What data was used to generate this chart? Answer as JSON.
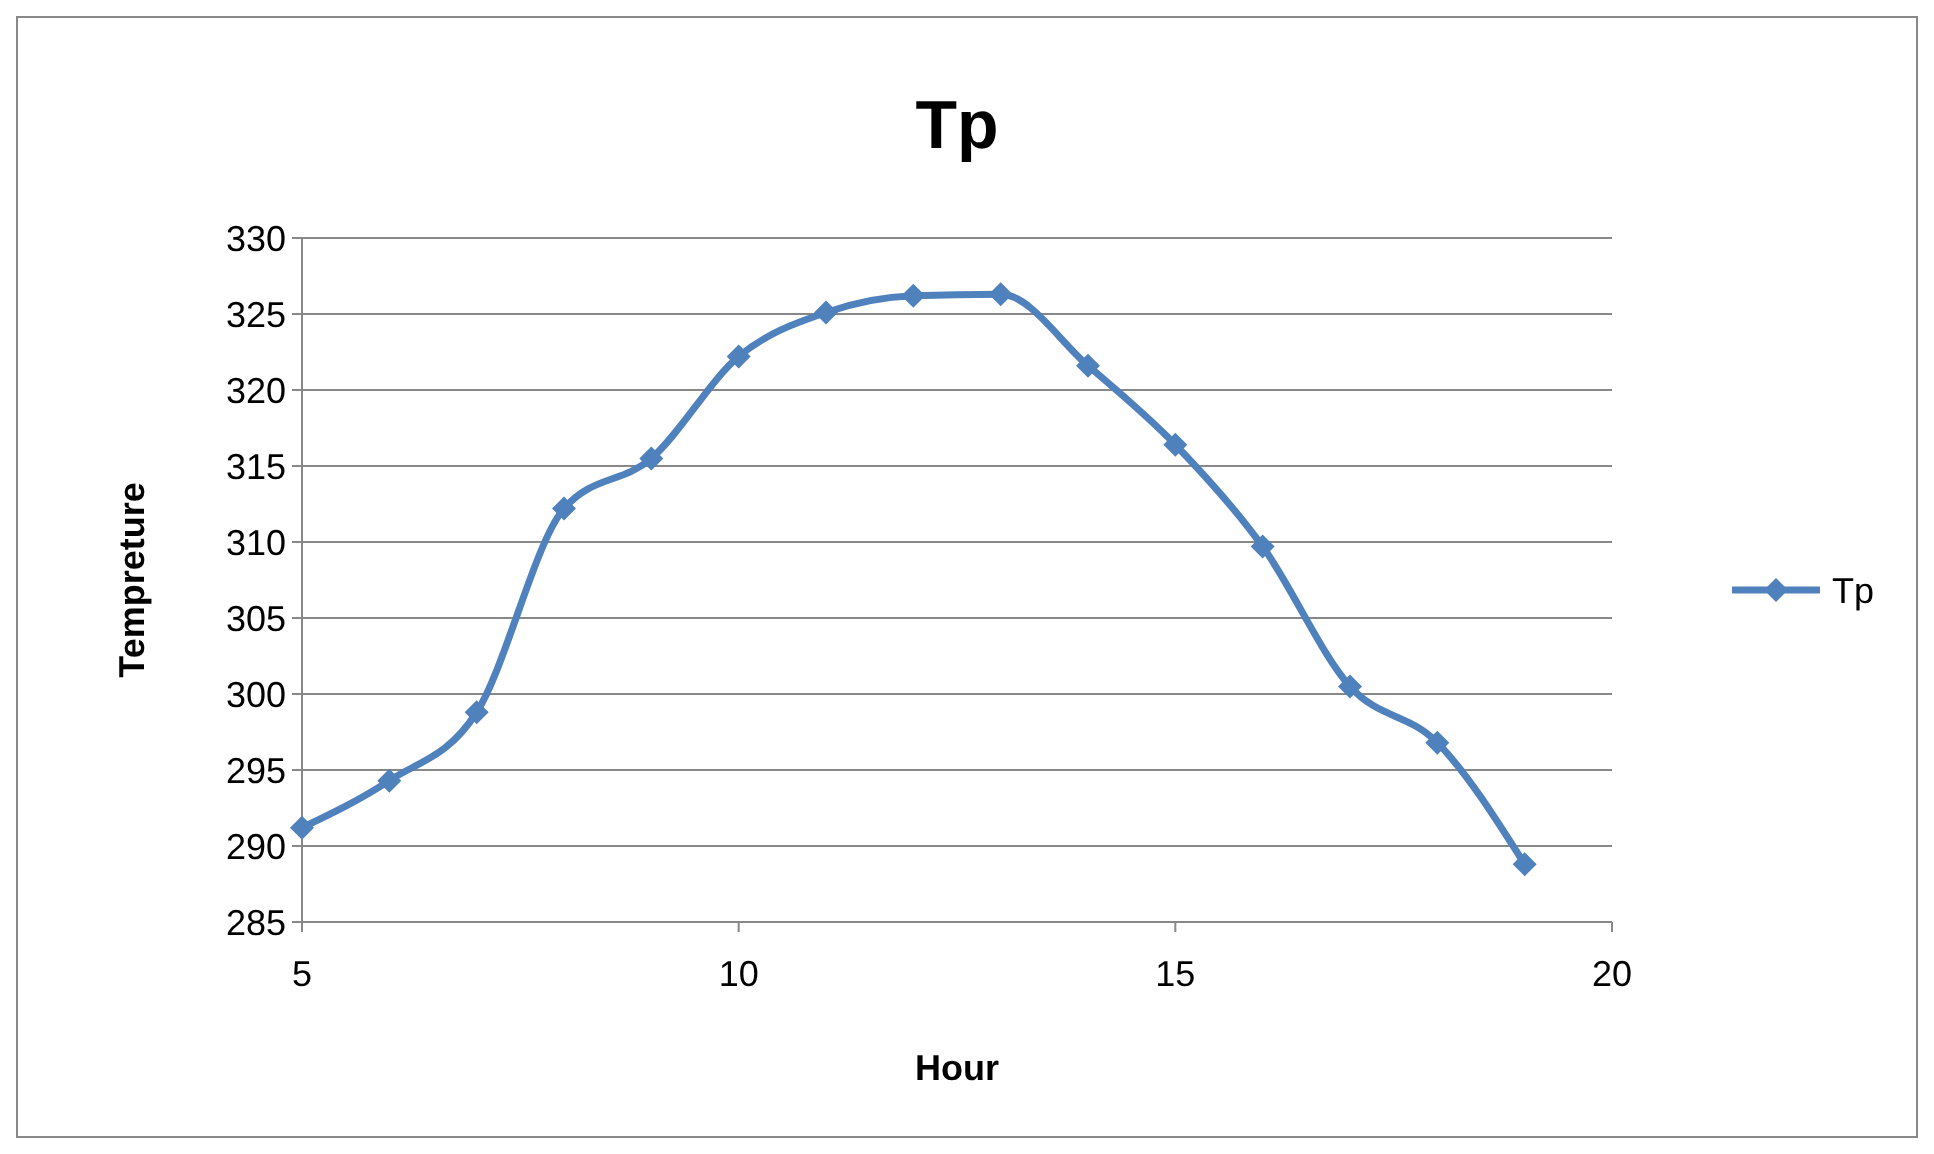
{
  "chart_data": {
    "type": "line",
    "title": "Tp",
    "xlabel": "Hour",
    "ylabel": "Tempreture",
    "x": [
      5,
      6,
      7,
      8,
      9,
      10,
      11,
      12,
      13,
      14,
      15,
      16,
      17,
      18,
      19
    ],
    "series": [
      {
        "name": "Tp",
        "color": "#4f81bd",
        "values": [
          291.2,
          294.3,
          298.8,
          312.2,
          315.5,
          322.2,
          325.1,
          326.2,
          326.3,
          321.6,
          316.4,
          309.7,
          300.5,
          296.8,
          288.8
        ]
      }
    ],
    "xlim": [
      5,
      20
    ],
    "xticks": [
      5,
      10,
      15,
      20
    ],
    "ylim": [
      285,
      330
    ],
    "yticks": [
      285,
      290,
      295,
      300,
      305,
      310,
      315,
      320,
      325,
      330
    ],
    "grid": "y",
    "legend": "right",
    "marker": "diamond",
    "line_style": "solid"
  }
}
